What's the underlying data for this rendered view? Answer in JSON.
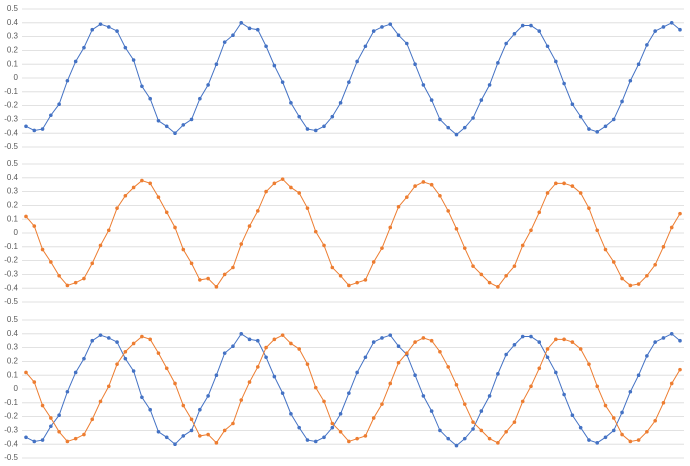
{
  "chart_data": [
    {
      "type": "line",
      "ylim": [
        -0.5,
        0.5
      ],
      "yticks": [
        0.5,
        0.4,
        0.3,
        0.2,
        0.1,
        0,
        -0.1,
        -0.2,
        -0.3,
        -0.4,
        -0.5
      ],
      "grid": true,
      "markers": true,
      "series": [
        {
          "color": "#4472c4",
          "values": [
            -0.35,
            -0.38,
            -0.37,
            -0.27,
            -0.19,
            -0.02,
            0.12,
            0.22,
            0.35,
            0.39,
            0.37,
            0.34,
            0.22,
            0.13,
            -0.06,
            -0.15,
            -0.31,
            -0.35,
            -0.4,
            -0.34,
            -0.3,
            -0.15,
            -0.05,
            0.1,
            0.26,
            0.31,
            0.4,
            0.36,
            0.35,
            0.23,
            0.09,
            -0.03,
            -0.18,
            -0.28,
            -0.37,
            -0.38,
            -0.35,
            -0.28,
            -0.18,
            -0.03,
            0.12,
            0.23,
            0.34,
            0.37,
            0.39,
            0.31,
            0.25,
            0.1,
            -0.05,
            -0.16,
            -0.3,
            -0.36,
            -0.41,
            -0.36,
            -0.29,
            -0.16,
            -0.05,
            0.11,
            0.25,
            0.32,
            0.38,
            0.38,
            0.34,
            0.23,
            0.12,
            -0.04,
            -0.19,
            -0.28,
            -0.37,
            -0.39,
            -0.35,
            -0.3,
            -0.17,
            -0.02,
            0.1,
            0.24,
            0.34,
            0.37,
            0.4,
            0.35
          ]
        }
      ]
    },
    {
      "type": "line",
      "ylim": [
        -0.5,
        0.5
      ],
      "yticks": [
        0.5,
        0.4,
        0.3,
        0.2,
        0.1,
        0,
        -0.1,
        -0.2,
        -0.3,
        -0.4,
        -0.5
      ],
      "grid": true,
      "markers": true,
      "series": [
        {
          "color": "#ed7d31",
          "values": [
            0.12,
            0.05,
            -0.12,
            -0.21,
            -0.31,
            -0.38,
            -0.36,
            -0.33,
            -0.22,
            -0.09,
            0.02,
            0.18,
            0.27,
            0.33,
            0.38,
            0.36,
            0.26,
            0.15,
            0.04,
            -0.12,
            -0.22,
            -0.34,
            -0.33,
            -0.39,
            -0.3,
            -0.25,
            -0.08,
            0.05,
            0.16,
            0.3,
            0.36,
            0.39,
            0.33,
            0.29,
            0.18,
            0.01,
            -0.09,
            -0.25,
            -0.31,
            -0.38,
            -0.36,
            -0.34,
            -0.21,
            -0.11,
            0.04,
            0.19,
            0.26,
            0.34,
            0.37,
            0.35,
            0.27,
            0.16,
            0.03,
            -0.11,
            -0.24,
            -0.3,
            -0.36,
            -0.39,
            -0.31,
            -0.24,
            -0.09,
            0.02,
            0.15,
            0.29,
            0.36,
            0.36,
            0.34,
            0.29,
            0.18,
            0.02,
            -0.12,
            -0.21,
            -0.33,
            -0.38,
            -0.37,
            -0.31,
            -0.23,
            -0.1,
            0.04,
            0.14
          ]
        }
      ]
    },
    {
      "type": "line",
      "ylim": [
        -0.5,
        0.5
      ],
      "yticks": [
        0.5,
        0.4,
        0.3,
        0.2,
        0.1,
        0,
        -0.1,
        -0.2,
        -0.3,
        -0.4,
        -0.5
      ],
      "grid": true,
      "markers": true,
      "series": [
        {
          "color": "#4472c4",
          "values": [
            -0.35,
            -0.38,
            -0.37,
            -0.27,
            -0.19,
            -0.02,
            0.12,
            0.22,
            0.35,
            0.39,
            0.37,
            0.34,
            0.22,
            0.13,
            -0.06,
            -0.15,
            -0.31,
            -0.35,
            -0.4,
            -0.34,
            -0.3,
            -0.15,
            -0.05,
            0.1,
            0.26,
            0.31,
            0.4,
            0.36,
            0.35,
            0.23,
            0.09,
            -0.03,
            -0.18,
            -0.28,
            -0.37,
            -0.38,
            -0.35,
            -0.28,
            -0.18,
            -0.03,
            0.12,
            0.23,
            0.34,
            0.37,
            0.39,
            0.31,
            0.25,
            0.1,
            -0.05,
            -0.16,
            -0.3,
            -0.36,
            -0.41,
            -0.36,
            -0.29,
            -0.16,
            -0.05,
            0.11,
            0.25,
            0.32,
            0.38,
            0.38,
            0.34,
            0.23,
            0.12,
            -0.04,
            -0.19,
            -0.28,
            -0.37,
            -0.39,
            -0.35,
            -0.3,
            -0.17,
            -0.02,
            0.1,
            0.24,
            0.34,
            0.37,
            0.4,
            0.35
          ]
        },
        {
          "color": "#ed7d31",
          "values": [
            0.12,
            0.05,
            -0.12,
            -0.21,
            -0.31,
            -0.38,
            -0.36,
            -0.33,
            -0.22,
            -0.09,
            0.02,
            0.18,
            0.27,
            0.33,
            0.38,
            0.36,
            0.26,
            0.15,
            0.04,
            -0.12,
            -0.22,
            -0.34,
            -0.33,
            -0.39,
            -0.3,
            -0.25,
            -0.08,
            0.05,
            0.16,
            0.3,
            0.36,
            0.39,
            0.33,
            0.29,
            0.18,
            0.01,
            -0.09,
            -0.25,
            -0.31,
            -0.38,
            -0.36,
            -0.34,
            -0.21,
            -0.11,
            0.04,
            0.19,
            0.26,
            0.34,
            0.37,
            0.35,
            0.27,
            0.16,
            0.03,
            -0.11,
            -0.24,
            -0.3,
            -0.36,
            -0.39,
            -0.31,
            -0.24,
            -0.09,
            0.02,
            0.15,
            0.29,
            0.36,
            0.36,
            0.34,
            0.29,
            0.18,
            0.02,
            -0.12,
            -0.21,
            -0.33,
            -0.38,
            -0.37,
            -0.31,
            -0.23,
            -0.1,
            0.04,
            0.14
          ]
        }
      ]
    }
  ]
}
